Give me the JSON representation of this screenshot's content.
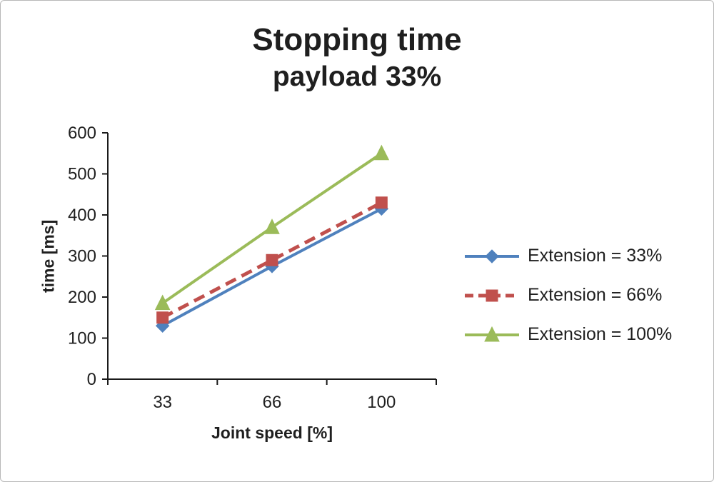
{
  "title": "Stopping time",
  "subtitle": "payload 33%",
  "chart_data": {
    "type": "line",
    "categories": [
      "33",
      "66",
      "100"
    ],
    "series": [
      {
        "name": "Extension = 33%",
        "values": [
          130,
          275,
          415
        ],
        "color": "#4F81BD",
        "marker": "diamond",
        "dash": "solid"
      },
      {
        "name": "Extension = 66%",
        "values": [
          150,
          290,
          430
        ],
        "color": "#C0504D",
        "marker": "square",
        "dash": "dashed"
      },
      {
        "name": "Extension = 100%",
        "values": [
          185,
          370,
          550
        ],
        "color": "#9BBB59",
        "marker": "triangle",
        "dash": "solid"
      }
    ],
    "title": "Stopping time",
    "subtitle": "payload 33%",
    "xlabel": "Joint speed [%]",
    "ylabel": "time [ms]",
    "ylim": [
      0,
      600
    ],
    "yticks": [
      0,
      100,
      200,
      300,
      400,
      500,
      600
    ],
    "grid": false,
    "legend_position": "right",
    "axis_color": "#1a1a1a"
  }
}
